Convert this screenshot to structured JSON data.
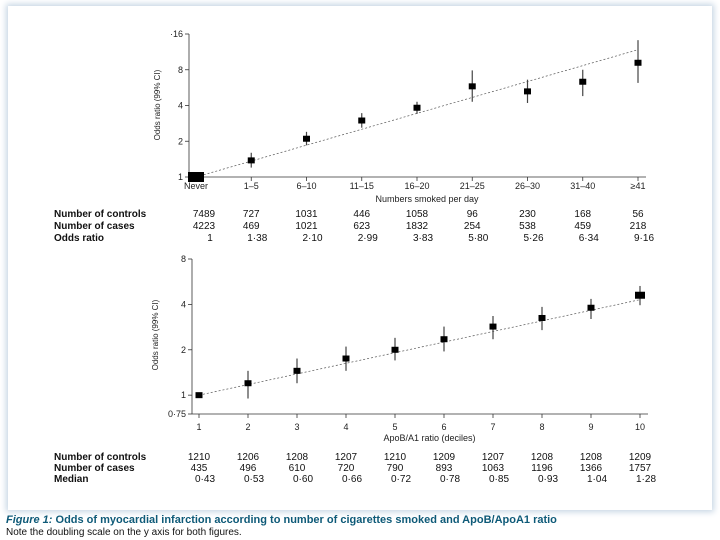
{
  "chart_data": [
    {
      "type": "scatter",
      "style": "point-with-error-bars",
      "xlabel": "Numbers smoked per day",
      "ylabel": "Odds ratio (99% CI)",
      "yscale": "log2",
      "ylim": [
        1,
        16
      ],
      "yticks": [
        1,
        2,
        4,
        8,
        16
      ],
      "ytick_labels": [
        "1",
        "2",
        "4",
        "8",
        "·16"
      ],
      "categories": [
        "Never",
        "1–5",
        "6–10",
        "11–15",
        "16–20",
        "21–25",
        "26–30",
        "31–40",
        "≥41"
      ],
      "values": [
        1.0,
        1.38,
        2.1,
        2.99,
        3.83,
        5.8,
        5.26,
        6.34,
        9.16
      ],
      "ci_low": [
        1.0,
        1.2,
        1.85,
        2.6,
        3.4,
        4.3,
        4.2,
        4.8,
        6.2
      ],
      "ci_high": [
        1.0,
        1.6,
        2.4,
        3.45,
        4.3,
        7.9,
        6.6,
        8.0,
        14.2
      ],
      "trend": [
        1.0,
        11.8
      ],
      "table": {
        "rows": [
          {
            "label": "Number of controls",
            "values": [
              "7489",
              "727",
              "1031",
              "446",
              "1058",
              "96",
              "230",
              "168",
              "56"
            ]
          },
          {
            "label": "Number of cases",
            "values": [
              "4223",
              "469",
              "1021",
              "623",
              "1832",
              "254",
              "538",
              "459",
              "218"
            ]
          },
          {
            "label": "Odds ratio",
            "values": [
              "1",
              "1·38",
              "2·10",
              "2·99",
              "3·83",
              "5·80",
              "5·26",
              "6·34",
              "9·16"
            ]
          }
        ]
      }
    },
    {
      "type": "scatter",
      "style": "point-with-error-bars",
      "xlabel": "ApoB/A1 ratio (deciles)",
      "ylabel": "Odds ratio (99% CI)",
      "yscale": "log2",
      "ylim": [
        0.75,
        8
      ],
      "yticks": [
        0.75,
        1,
        2,
        4,
        8
      ],
      "ytick_labels": [
        "0·75",
        "1",
        "2",
        "4",
        "8"
      ],
      "categories": [
        "1",
        "2",
        "3",
        "4",
        "5",
        "6",
        "7",
        "8",
        "9",
        "10"
      ],
      "values": [
        1.0,
        1.2,
        1.45,
        1.75,
        2.0,
        2.35,
        2.85,
        3.25,
        3.8,
        4.6
      ],
      "ci_low": [
        1.0,
        0.95,
        1.2,
        1.45,
        1.7,
        1.95,
        2.35,
        2.7,
        3.2,
        3.95
      ],
      "ci_high": [
        1.0,
        1.45,
        1.75,
        2.1,
        2.4,
        2.85,
        3.35,
        3.85,
        4.35,
        5.3
      ],
      "trend": [
        1.0,
        4.3
      ],
      "table": {
        "rows": [
          {
            "label": "Number of controls",
            "values": [
              "1210",
              "1206",
              "1208",
              "1207",
              "1210",
              "1209",
              "1207",
              "1208",
              "1208",
              "1209"
            ]
          },
          {
            "label": "Number of cases",
            "values": [
              "435",
              "496",
              "610",
              "720",
              "790",
              "893",
              "1063",
              "1196",
              "1366",
              "1757"
            ]
          },
          {
            "label": "Median",
            "values": [
              "0·43",
              "0·53",
              "0·60",
              "0·66",
              "0·72",
              "0·78",
              "0·85",
              "0·93",
              "1·04",
              "1·28"
            ]
          }
        ]
      }
    }
  ],
  "caption": {
    "figure_label": "Figure 1:",
    "title": "Odds of myocardial infarction according to number of cigarettes smoked and ApoB/ApoA1 ratio",
    "note": "Note the doubling scale on the y axis for both figures."
  }
}
